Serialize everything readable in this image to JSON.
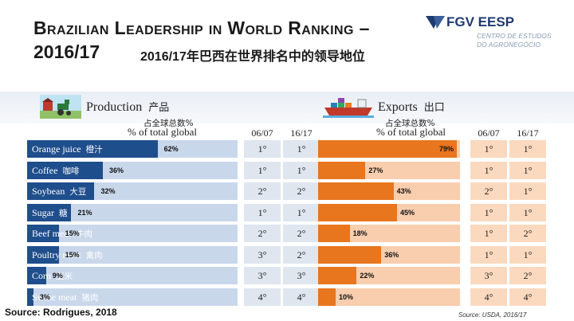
{
  "title": {
    "line1": "Brazilian Leadership in World Ranking –",
    "line2": "2016/17",
    "line2_cn": "2016/17年巴西在世界排名中的领导地位"
  },
  "logo": {
    "name": "FGV EESP",
    "sub_line1": "CENTRO DE ESTUDOS",
    "sub_line2": "DO AGRONEGÓCIO"
  },
  "headers": {
    "share_cn": "占全球总数%",
    "share_en": "% of total global",
    "col1": "06/07",
    "col2": "16/17"
  },
  "source_left": "Source: Rodrigues, 2018",
  "source_right": "Source: USDA, 2016/17",
  "colors": {
    "production_bar": "#1f4e8c",
    "production_track": "#c9d7eb",
    "export_bar": "#e8761e",
    "export_track": "#f8ceae",
    "rank_prod_bg": "#dfe6f0",
    "rank_exp_bg": "#fbd9bf"
  },
  "chart_data": [
    {
      "type": "bar",
      "title": "Production",
      "title_cn": "产品",
      "categories": [
        "Orange juice",
        "Coffee",
        "Soybean",
        "Sugar",
        "Beef meat",
        "Poultry meat",
        "Corn",
        "Swine meat"
      ],
      "categories_cn": [
        "橙汁",
        "咖啡",
        "大豆",
        "糖",
        "牛肉",
        "禽肉",
        "玉米",
        "猪肉"
      ],
      "values": [
        62,
        36,
        32,
        21,
        15,
        15,
        9,
        3
      ],
      "value_labels": [
        "62%",
        "36%",
        "32%",
        "21%",
        "15%",
        "15%",
        "9%",
        "3%"
      ],
      "xlim": [
        0,
        100
      ],
      "rank_0607": [
        "1°",
        "1°",
        "2°",
        "1°",
        "2°",
        "3°",
        "3°",
        "4°"
      ],
      "rank_1617": [
        "1°",
        "1°",
        "2°",
        "1°",
        "2°",
        "2°",
        "3°",
        "4°"
      ]
    },
    {
      "type": "bar",
      "title": "Exports",
      "title_cn": "出口",
      "categories": [
        "Orange juice",
        "Coffee",
        "Soybean",
        "Sugar",
        "Beef meat",
        "Poultry meat",
        "Corn",
        "Swine meat"
      ],
      "values": [
        79,
        27,
        43,
        45,
        18,
        36,
        22,
        10
      ],
      "value_labels": [
        "79%",
        "27%",
        "43%",
        "45%",
        "18%",
        "36%",
        "22%",
        "10%"
      ],
      "xlim": [
        0,
        100
      ],
      "rank_0607": [
        "1°",
        "1°",
        "2°",
        "1°",
        "1°",
        "1°",
        "3°",
        "4°"
      ],
      "rank_1617": [
        "1°",
        "1°",
        "1°",
        "1°",
        "2°",
        "1°",
        "2°",
        "4°"
      ]
    }
  ]
}
